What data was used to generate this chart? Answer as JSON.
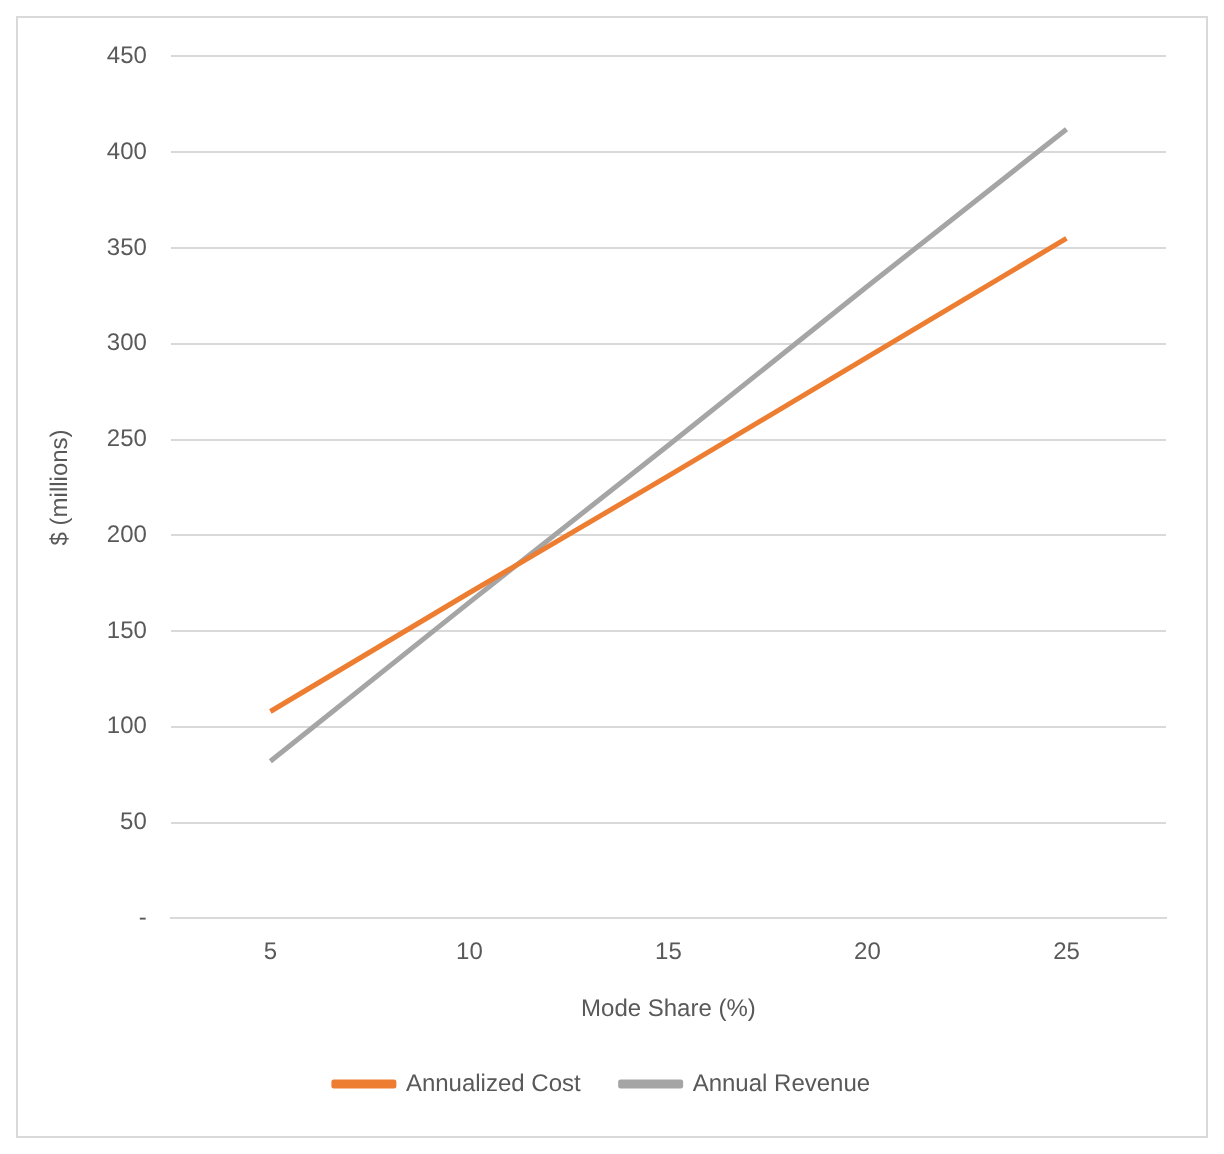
{
  "chart_data": {
    "type": "line",
    "xlabel": "Mode Share (%)",
    "ylabel": "$ (millions)",
    "categories": [
      "5",
      "10",
      "15",
      "20",
      "25"
    ],
    "series": [
      {
        "name": "Annualized Cost",
        "color": "#ed7d31",
        "values": [
          108,
          170,
          231,
          293,
          355
        ]
      },
      {
        "name": "Annual Revenue",
        "color": "#a5a5a5",
        "values": [
          82,
          165,
          247,
          330,
          412
        ]
      }
    ],
    "ylim": [
      0,
      450
    ],
    "yticks": [
      {
        "value": 0,
        "label": "-"
      },
      50,
      100,
      150,
      200,
      250,
      300,
      350,
      400,
      450
    ],
    "grid": "y",
    "legend": "bottom",
    "marker": "none",
    "line_style": "solid"
  }
}
